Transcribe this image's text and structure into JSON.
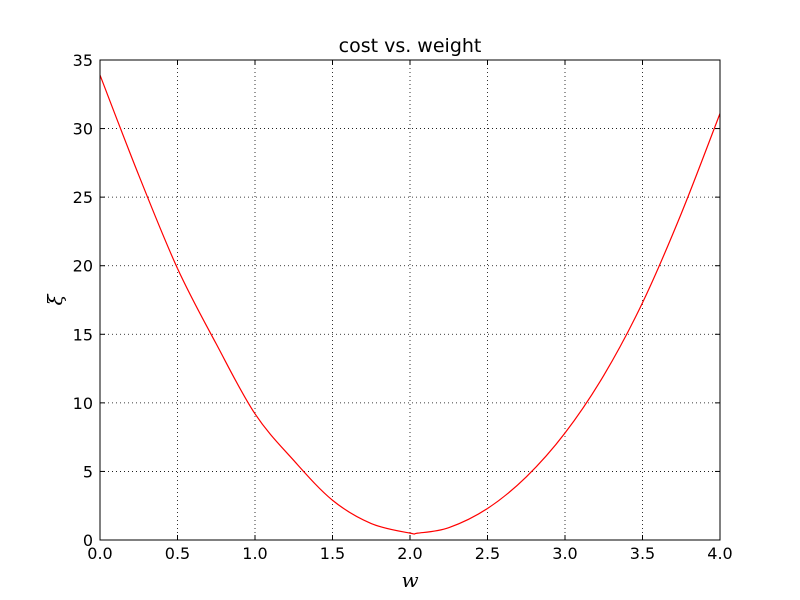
{
  "chart_data": {
    "type": "line",
    "title": "cost vs. weight",
    "xlabel": "w",
    "ylabel": "ξ",
    "xlim": [
      0.0,
      4.0
    ],
    "ylim": [
      0,
      35
    ],
    "grid": true,
    "xticks": [
      "0.0",
      "0.5",
      "1.0",
      "1.5",
      "2.0",
      "2.5",
      "3.0",
      "3.5",
      "4.0"
    ],
    "yticks": [
      "0",
      "5",
      "10",
      "15",
      "20",
      "25",
      "30",
      "35"
    ],
    "series": [
      {
        "color": "#ff0000",
        "x": [
          0.0,
          0.25,
          0.5,
          0.75,
          1.0,
          1.25,
          1.5,
          1.75,
          2.0,
          2.05,
          2.25,
          2.5,
          2.75,
          3.0,
          3.25,
          3.5,
          3.75,
          4.0
        ],
        "y": [
          33.9,
          26.6,
          19.8,
          14.3,
          9.2,
          5.8,
          2.9,
          1.2,
          0.5,
          0.5,
          0.9,
          2.3,
          4.6,
          7.8,
          12.0,
          17.3,
          23.8,
          31.1
        ]
      }
    ]
  }
}
